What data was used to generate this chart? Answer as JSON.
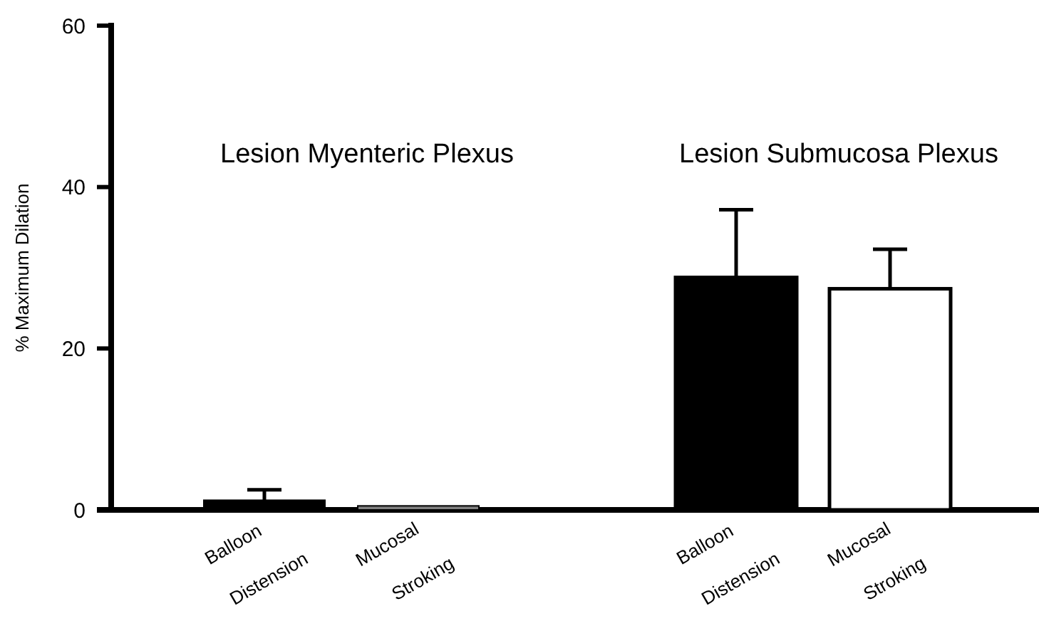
{
  "chart_data": {
    "type": "bar",
    "ylabel": "% Maximum Dilation",
    "categories": [
      "Balloon Distension",
      "Mucosal Stroking",
      "Balloon Distension",
      "Mucosal Stroking"
    ],
    "values": [
      1.2,
      0.5,
      28.8,
      27.4
    ],
    "errors": [
      [
        1.2,
        2.5
      ],
      null,
      [
        28.8,
        37.2
      ],
      [
        27.4,
        32.3
      ]
    ],
    "colors": [
      "#000000",
      "#808080",
      "#000000",
      "#ffffff"
    ],
    "ylim": [
      0,
      60
    ],
    "yticks": [
      0,
      20,
      40,
      60
    ],
    "grid": false,
    "annotations": [
      "Lesion Myenteric Plexus",
      "Lesion Submucosa Plexus"
    ]
  }
}
